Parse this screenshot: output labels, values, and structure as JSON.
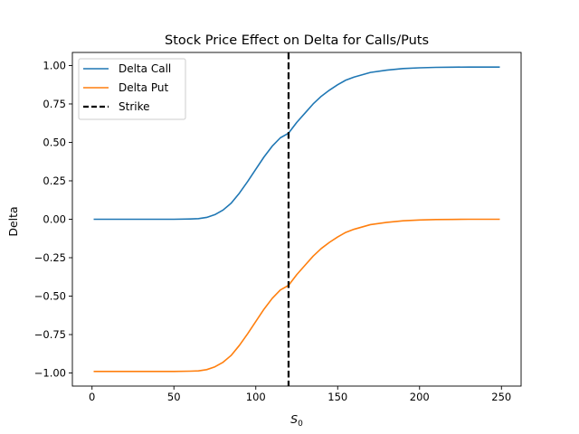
{
  "chart_data": {
    "type": "line",
    "title": "Stock Price Effect on Delta for Calls/Puts",
    "xlabel": "S",
    "xlabel_sub": "0",
    "ylabel": "Delta",
    "xlim": [
      -12,
      262
    ],
    "ylim": [
      -1.085,
      1.085
    ],
    "xticks": [
      0,
      50,
      100,
      150,
      200,
      250
    ],
    "yticks": [
      -1.0,
      -0.75,
      -0.5,
      -0.25,
      0.0,
      0.25,
      0.5,
      0.75,
      1.0
    ],
    "ytick_labels": [
      "−1.00",
      "−0.75",
      "−0.50",
      "−0.25",
      "0.00",
      "0.25",
      "0.50",
      "0.75",
      "1.00"
    ],
    "grid": false,
    "legend_position": "top-left",
    "x": [
      1,
      10,
      20,
      30,
      40,
      50,
      60,
      65,
      70,
      75,
      80,
      85,
      90,
      95,
      100,
      105,
      110,
      115,
      120,
      125,
      130,
      135,
      140,
      145,
      150,
      155,
      160,
      170,
      180,
      190,
      200,
      210,
      220,
      230,
      240,
      249
    ],
    "series": [
      {
        "name": "Delta Call",
        "color": "#1f77b4",
        "values": [
          0.0,
          0.0,
          0.0,
          0.0,
          0.0,
          0.0,
          0.002,
          0.004,
          0.012,
          0.03,
          0.06,
          0.105,
          0.17,
          0.245,
          0.325,
          0.405,
          0.475,
          0.53,
          0.56,
          0.63,
          0.69,
          0.75,
          0.8,
          0.84,
          0.875,
          0.905,
          0.925,
          0.955,
          0.97,
          0.98,
          0.985,
          0.988,
          0.989,
          0.99,
          0.99,
          0.99
        ]
      },
      {
        "name": "Delta Put",
        "color": "#ff7f0e",
        "values": [
          -0.99,
          -0.99,
          -0.99,
          -0.99,
          -0.99,
          -0.99,
          -0.988,
          -0.986,
          -0.978,
          -0.96,
          -0.93,
          -0.885,
          -0.82,
          -0.745,
          -0.665,
          -0.585,
          -0.515,
          -0.46,
          -0.43,
          -0.36,
          -0.3,
          -0.24,
          -0.19,
          -0.15,
          -0.115,
          -0.085,
          -0.065,
          -0.035,
          -0.02,
          -0.01,
          -0.005,
          -0.002,
          -0.001,
          0.0,
          0.0,
          0.0
        ]
      }
    ],
    "vline": {
      "name": "Strike",
      "x": 120,
      "color": "#000000",
      "style": "dashed"
    }
  }
}
